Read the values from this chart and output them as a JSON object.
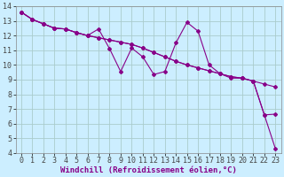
{
  "xlabel": "Windchill (Refroidissement éolien,°C)",
  "xlim": [
    -0.5,
    23.5
  ],
  "ylim": [
    4,
    14
  ],
  "xticks": [
    0,
    1,
    2,
    3,
    4,
    5,
    6,
    7,
    8,
    9,
    10,
    11,
    12,
    13,
    14,
    15,
    16,
    17,
    18,
    19,
    20,
    21,
    22,
    23
  ],
  "yticks": [
    4,
    5,
    6,
    7,
    8,
    9,
    10,
    11,
    12,
    13,
    14
  ],
  "bg_color": "#cceeff",
  "line_color": "#880088",
  "grid_color": "#aacccc",
  "line1_x": [
    0,
    1,
    2,
    3,
    4,
    5,
    6,
    7,
    8,
    9,
    10,
    11,
    12,
    13,
    14,
    15,
    16,
    17,
    18,
    19,
    20,
    21,
    22,
    23
  ],
  "line1_y": [
    13.6,
    13.1,
    12.8,
    12.5,
    12.45,
    12.2,
    12.0,
    11.85,
    11.7,
    11.55,
    11.4,
    11.15,
    10.85,
    10.55,
    10.25,
    10.0,
    9.8,
    9.6,
    9.4,
    9.2,
    9.1,
    8.9,
    8.7,
    8.5
  ],
  "line2_x": [
    0,
    1,
    2,
    3,
    4,
    5,
    6,
    7,
    8,
    9,
    10,
    11,
    12,
    13,
    14,
    15,
    16,
    17,
    18,
    19,
    20,
    21,
    22,
    23
  ],
  "line2_y": [
    13.6,
    13.1,
    12.8,
    12.5,
    12.45,
    12.2,
    12.0,
    12.45,
    11.1,
    9.55,
    11.15,
    10.55,
    9.35,
    9.55,
    11.5,
    12.9,
    12.3,
    10.0,
    9.4,
    9.1,
    9.1,
    8.9,
    6.6,
    6.65
  ],
  "line3_x": [
    0,
    1,
    2,
    3,
    4,
    5,
    6,
    7,
    8,
    9,
    10,
    11,
    12,
    13,
    14,
    15,
    16,
    17,
    18,
    19,
    20,
    21,
    22,
    23
  ],
  "line3_y": [
    13.6,
    13.1,
    12.8,
    12.5,
    12.45,
    12.2,
    12.0,
    11.85,
    11.7,
    11.55,
    11.4,
    11.15,
    10.85,
    10.55,
    10.25,
    10.0,
    9.8,
    9.6,
    9.4,
    9.2,
    9.1,
    8.9,
    6.6,
    4.3
  ],
  "font_size_label": 6.5,
  "font_size_tick": 6.0,
  "marker_size": 2.0,
  "lw": 0.8
}
